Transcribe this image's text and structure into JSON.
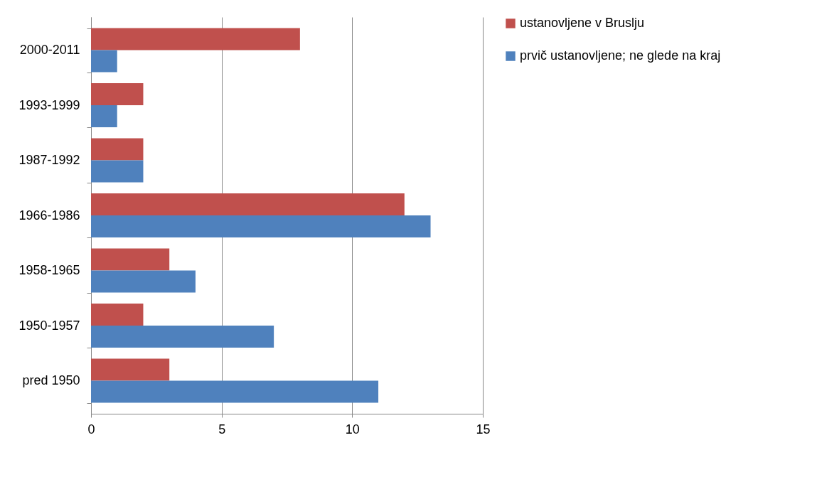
{
  "chart_data": {
    "type": "bar",
    "orientation": "horizontal",
    "categories": [
      "2000-2011",
      "1993-1999",
      "1987-1992",
      "1966-1986",
      "1958-1965",
      "1950-1957",
      "pred 1950"
    ],
    "series": [
      {
        "name": "ustanovljene v Bruslju",
        "color": "#c0504d",
        "values": [
          8,
          2,
          2,
          12,
          3,
          2,
          3
        ]
      },
      {
        "name": "prvič ustanovljene; ne glede na kraj",
        "color": "#4f81bd",
        "values": [
          1,
          1,
          2,
          13,
          4,
          7,
          11
        ]
      }
    ],
    "xlim": [
      0,
      15
    ],
    "xticks": [
      0,
      5,
      10,
      15
    ],
    "grid": "x",
    "legend": "right"
  }
}
